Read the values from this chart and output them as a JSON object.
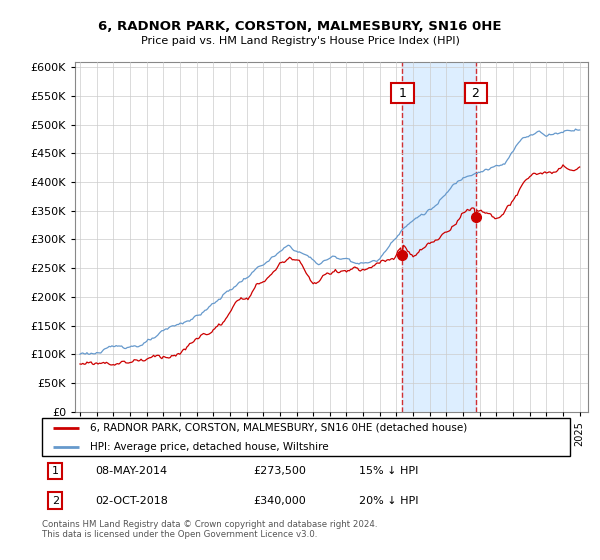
{
  "title": "6, RADNOR PARK, CORSTON, MALMESBURY, SN16 0HE",
  "subtitle": "Price paid vs. HM Land Registry's House Price Index (HPI)",
  "ylabel_ticks": [
    0,
    50000,
    100000,
    150000,
    200000,
    250000,
    300000,
    350000,
    400000,
    450000,
    500000,
    550000,
    600000
  ],
  "ylim": [
    0,
    610000
  ],
  "xlim_start": 1994.7,
  "xlim_end": 2025.5,
  "sale1_date": 2014.36,
  "sale1_price": 273500,
  "sale2_date": 2018.75,
  "sale2_price": 340000,
  "sale1_label": "1",
  "sale2_label": "2",
  "legend_property": "6, RADNOR PARK, CORSTON, MALMESBURY, SN16 0HE (detached house)",
  "legend_hpi": "HPI: Average price, detached house, Wiltshire",
  "footer": "Contains HM Land Registry data © Crown copyright and database right 2024.\nThis data is licensed under the Open Government Licence v3.0.",
  "property_color": "#cc0000",
  "hpi_color": "#6699cc",
  "shade_color": "#ddeeff",
  "x_ticks": [
    1995,
    1996,
    1997,
    1998,
    1999,
    2000,
    2001,
    2002,
    2003,
    2004,
    2005,
    2006,
    2007,
    2008,
    2009,
    2010,
    2011,
    2012,
    2013,
    2014,
    2015,
    2016,
    2017,
    2018,
    2019,
    2020,
    2021,
    2022,
    2023,
    2024,
    2025
  ]
}
